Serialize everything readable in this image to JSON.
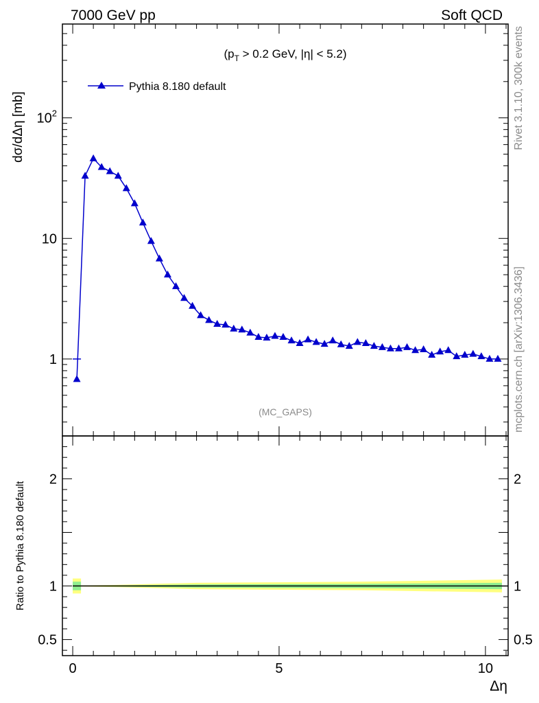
{
  "header": {
    "left": "7000 GeV pp",
    "right": "Soft QCD"
  },
  "side_labels": {
    "rivet": "Rivet 3.1.10,  300k events",
    "mcplots": "mcplots.cern.ch [arXiv:1306.3436]"
  },
  "chart_data": [
    {
      "type": "line",
      "panel": "main",
      "title": "(pT > 0.2 GeV, |η| < 5.2)",
      "annotation": "(MC_GAPS)",
      "ylabel": "dσ/dΔη [mb]",
      "xlabel": "",
      "yscale": "log",
      "xlim": [
        -0.25,
        10.55
      ],
      "ylim": [
        0.23,
        600
      ],
      "yticks": [
        {
          "value": 1,
          "label": "1"
        },
        {
          "value": 10,
          "label": "10"
        },
        {
          "value": 100,
          "label": "10²"
        }
      ],
      "legend": {
        "position": "top-left",
        "entries": [
          "Pythia 8.180 default"
        ]
      },
      "series": [
        {
          "name": "Pythia 8.180 default",
          "color": "#0000cc",
          "marker": "triangle",
          "x": [
            0.1,
            0.3,
            0.5,
            0.7,
            0.9,
            1.1,
            1.3,
            1.5,
            1.7,
            1.9,
            2.1,
            2.3,
            2.5,
            2.7,
            2.9,
            3.1,
            3.3,
            3.5,
            3.7,
            3.9,
            4.1,
            4.3,
            4.5,
            4.7,
            4.9,
            5.1,
            5.3,
            5.5,
            5.7,
            5.9,
            6.1,
            6.3,
            6.5,
            6.7,
            6.9,
            7.1,
            7.3,
            7.5,
            7.7,
            7.9,
            8.1,
            8.3,
            8.5,
            8.7,
            8.9,
            9.1,
            9.3,
            9.5,
            9.7,
            9.9,
            10.1,
            10.3
          ],
          "values": [
            0.68,
            33,
            46,
            39,
            36,
            33,
            26,
            19.5,
            13.5,
            9.5,
            6.8,
            5.0,
            4.0,
            3.2,
            2.75,
            2.3,
            2.1,
            1.95,
            1.92,
            1.78,
            1.75,
            1.65,
            1.52,
            1.5,
            1.55,
            1.52,
            1.42,
            1.35,
            1.45,
            1.38,
            1.33,
            1.42,
            1.32,
            1.28,
            1.38,
            1.35,
            1.28,
            1.25,
            1.22,
            1.22,
            1.25,
            1.18,
            1.2,
            1.08,
            1.15,
            1.18,
            1.05,
            1.08,
            1.1,
            1.05,
            1.0,
            1.0
          ]
        }
      ]
    },
    {
      "type": "line",
      "panel": "ratio",
      "ylabel": "Ratio to Pythia 8.180 default",
      "xlabel": "Δη",
      "xlim": [
        -0.25,
        10.55
      ],
      "ylim": [
        0.35,
        2.4
      ],
      "yticks": [
        {
          "value": 0.5,
          "label": "0.5"
        },
        {
          "value": 1,
          "label": "1"
        },
        {
          "value": 2,
          "label": "2"
        }
      ],
      "xticks": [
        {
          "value": 0,
          "label": "0"
        },
        {
          "value": 5,
          "label": "5"
        },
        {
          "value": 10,
          "label": "10"
        }
      ],
      "series": [
        {
          "name": "Pythia 8.180 default",
          "color": "#000000",
          "x": [
            0.0,
            10.4
          ],
          "values": [
            1.0,
            1.0
          ]
        }
      ],
      "bands": [
        {
          "name": "stat+syst",
          "color": "#ffff80",
          "x": [
            0.0,
            0.2,
            0.2,
            1.0,
            2.0,
            3.0,
            5.0,
            7.0,
            10.4
          ],
          "lower": [
            0.93,
            0.93,
            0.995,
            0.99,
            0.98,
            0.97,
            0.965,
            0.96,
            0.94
          ],
          "upper": [
            1.07,
            1.07,
            1.005,
            1.01,
            1.02,
            1.03,
            1.035,
            1.04,
            1.06
          ]
        },
        {
          "name": "stat",
          "color": "#90ee90",
          "x": [
            0.0,
            0.2,
            0.2,
            1.0,
            2.0,
            3.0,
            5.0,
            7.0,
            10.4
          ],
          "lower": [
            0.96,
            0.96,
            0.998,
            0.995,
            0.99,
            0.985,
            0.982,
            0.98,
            0.97
          ],
          "upper": [
            1.04,
            1.04,
            1.002,
            1.005,
            1.01,
            1.015,
            1.018,
            1.02,
            1.03
          ]
        }
      ]
    }
  ]
}
